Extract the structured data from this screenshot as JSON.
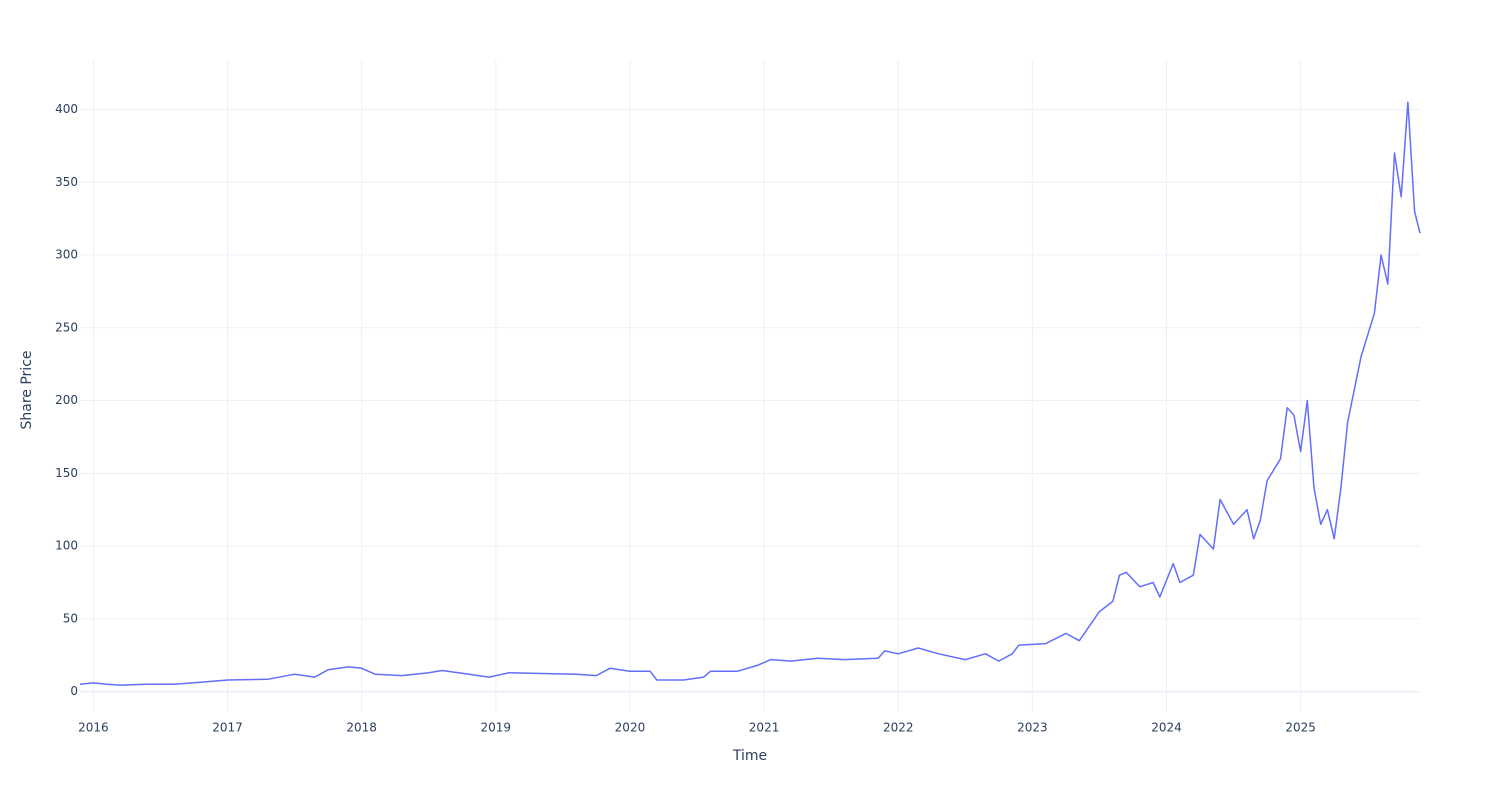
{
  "chart_data": {
    "type": "line",
    "x_label": "Time",
    "y_label": "Share Price",
    "xlim": [
      2015.9,
      2025.89
    ],
    "xticks": [
      2016,
      2017,
      2018,
      2019,
      2020,
      2021,
      2022,
      2023,
      2024,
      2025
    ],
    "ylim": [
      -14,
      434
    ],
    "yticks": [
      0,
      50,
      100,
      150,
      200,
      250,
      300,
      350,
      400
    ],
    "grid": true,
    "series": [
      {
        "color": "#636efa",
        "x": [
          2015.9,
          2016.0,
          2016.1,
          2016.2,
          2016.4,
          2016.6,
          2016.8,
          2017.0,
          2017.3,
          2017.5,
          2017.65,
          2017.75,
          2017.9,
          2018.0,
          2018.1,
          2018.3,
          2018.5,
          2018.6,
          2018.8,
          2018.95,
          2019.1,
          2019.3,
          2019.6,
          2019.75,
          2019.85,
          2020.0,
          2020.15,
          2020.2,
          2020.4,
          2020.55,
          2020.6,
          2020.8,
          2020.95,
          2021.05,
          2021.2,
          2021.4,
          2021.6,
          2021.85,
          2021.9,
          2022.0,
          2022.15,
          2022.3,
          2022.5,
          2022.65,
          2022.75,
          2022.85,
          2022.9,
          2023.1,
          2023.25,
          2023.35,
          2023.5,
          2023.6,
          2023.65,
          2023.7,
          2023.8,
          2023.9,
          2023.95,
          2024.05,
          2024.1,
          2024.2,
          2024.25,
          2024.35,
          2024.4,
          2024.5,
          2024.6,
          2024.65,
          2024.7,
          2024.75,
          2024.85,
          2024.9,
          2024.95,
          2025.0,
          2025.05,
          2025.1,
          2025.15,
          2025.2,
          2025.25,
          2025.3,
          2025.35,
          2025.45,
          2025.55,
          2025.6,
          2025.65,
          2025.7,
          2025.75,
          2025.8,
          2025.85,
          2025.89
        ],
        "values": [
          5,
          6,
          5,
          4.5,
          5,
          5,
          6.5,
          8,
          8.5,
          12,
          10,
          15,
          17,
          16,
          12,
          11,
          13,
          14.5,
          12,
          10,
          13,
          12.5,
          12,
          11,
          16,
          14,
          14,
          8,
          8,
          10,
          14,
          14,
          18,
          22,
          21,
          23,
          22,
          23,
          28,
          26,
          30,
          26,
          22,
          26,
          21,
          26,
          32,
          33,
          40,
          35,
          55,
          62,
          80,
          82,
          72,
          75,
          65,
          88,
          75,
          80,
          108,
          98,
          132,
          115,
          125,
          105,
          118,
          145,
          160,
          195,
          190,
          165,
          200,
          140,
          115,
          125,
          105,
          140,
          185,
          230,
          260,
          300,
          280,
          370,
          340,
          405,
          330,
          315
        ]
      }
    ]
  }
}
